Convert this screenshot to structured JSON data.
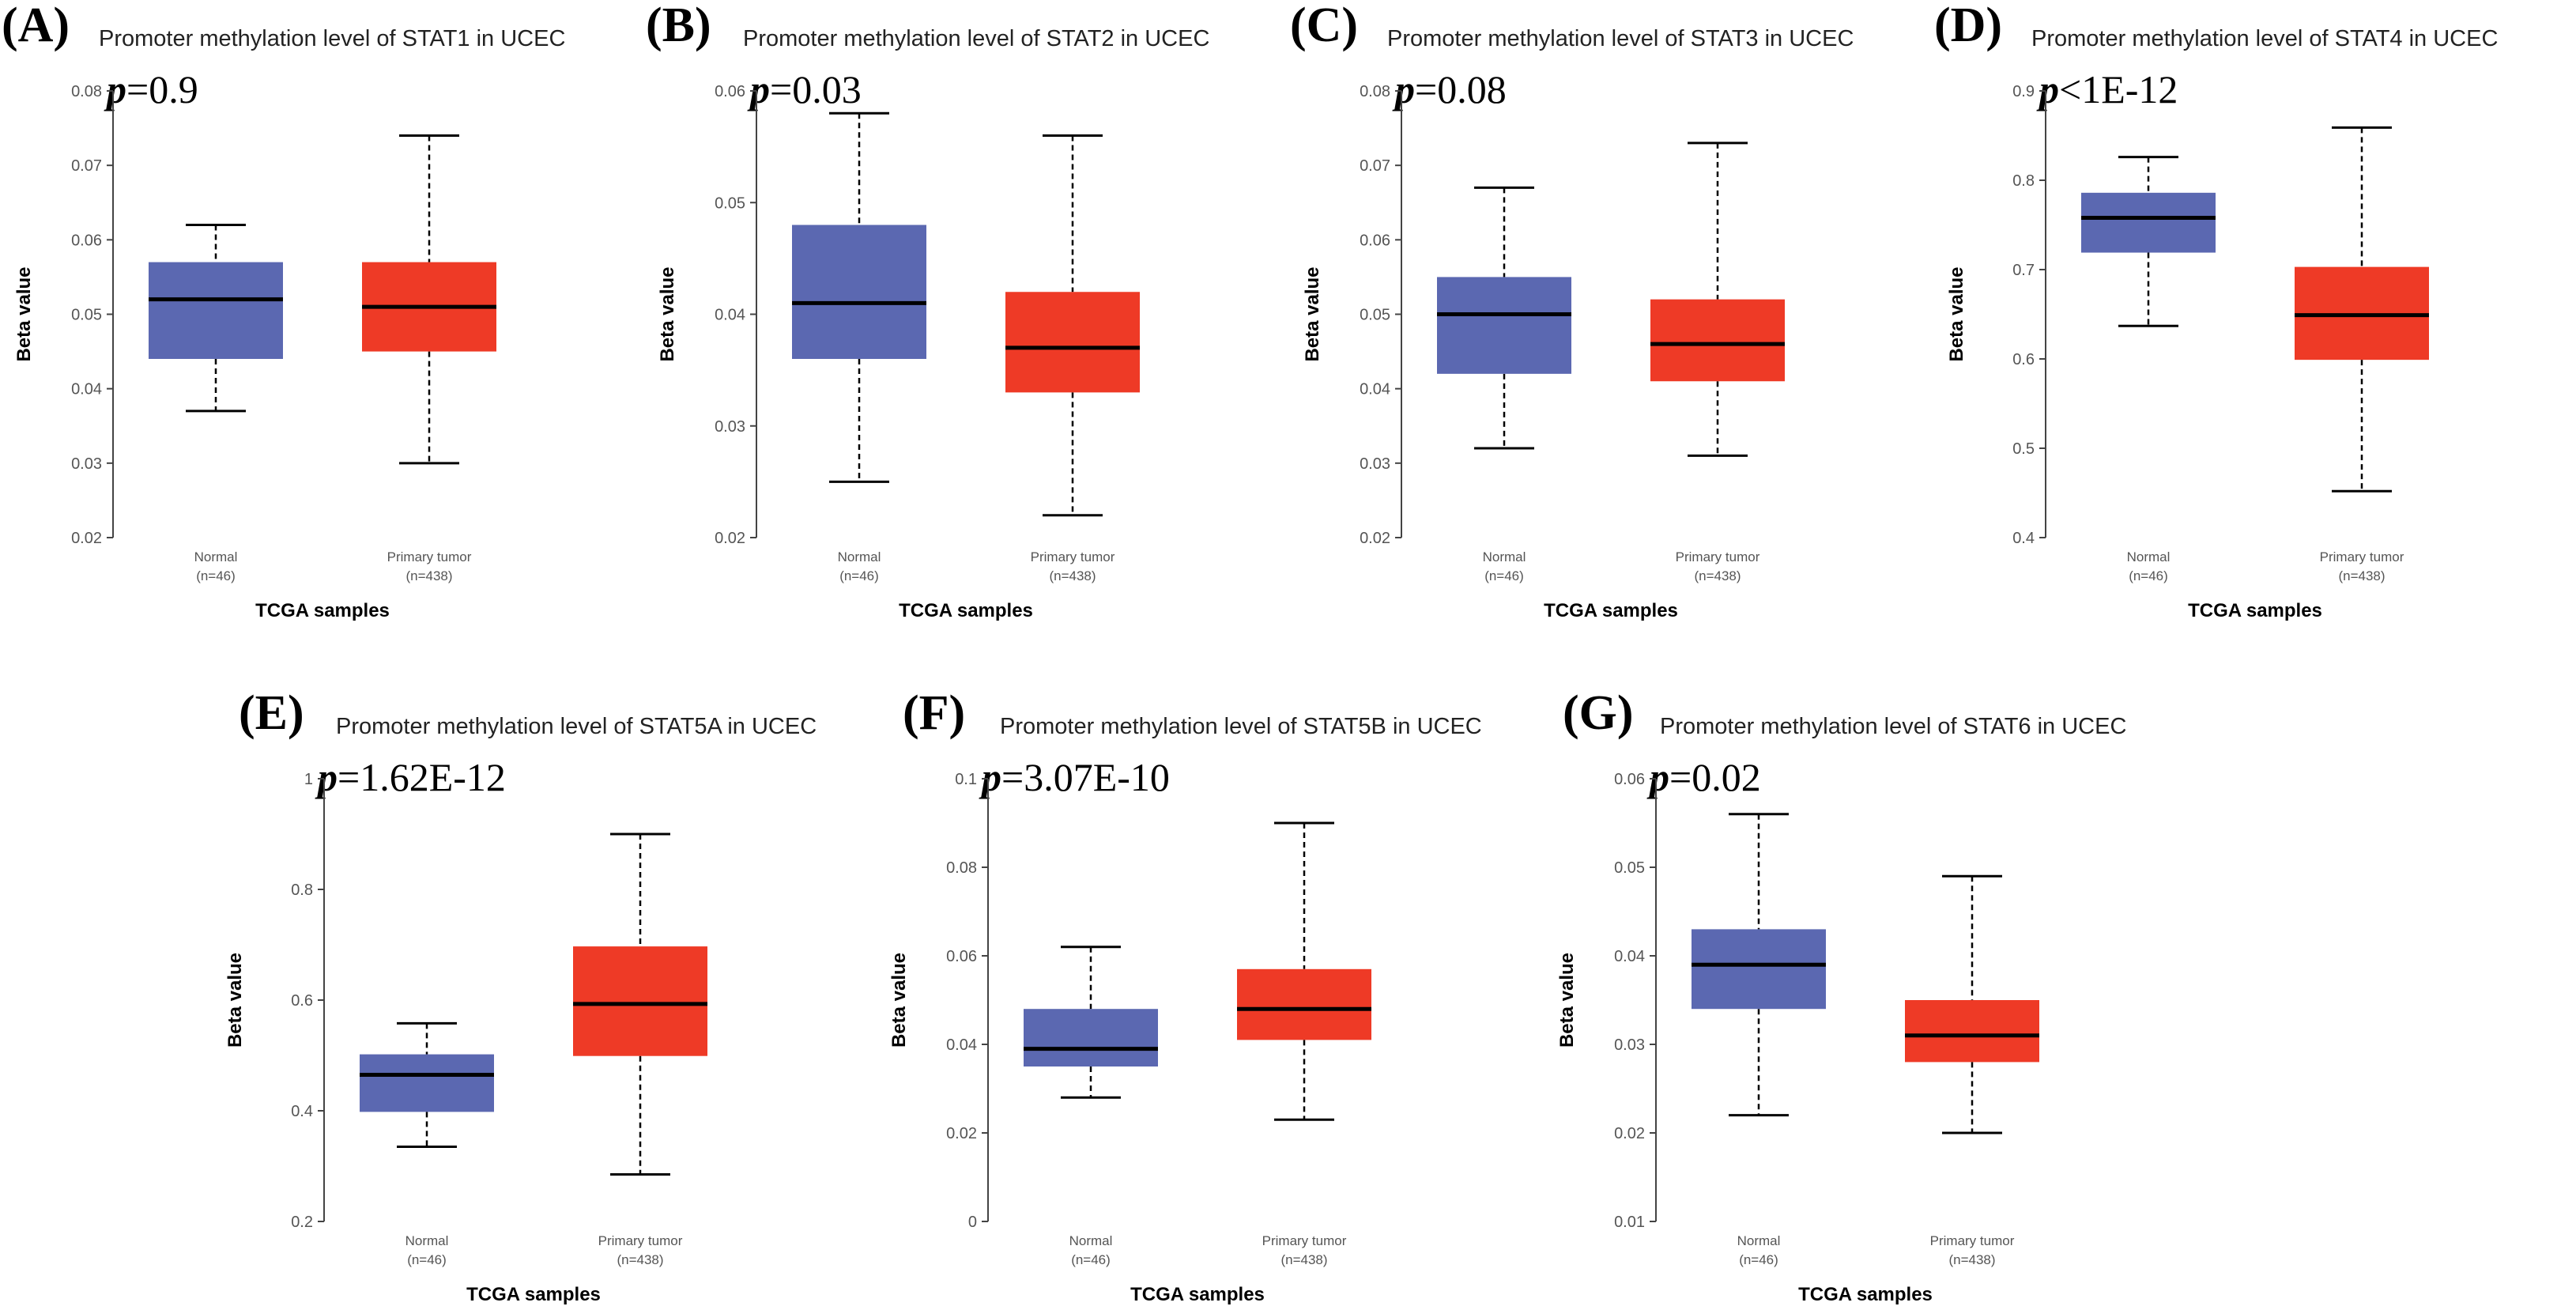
{
  "chart_data": [
    {
      "type": "box",
      "panel": "(A)",
      "title": "Promoter methylation level of STAT1 in UCEC",
      "p_value": "=0.9",
      "p_symbol": "p",
      "xlabel": "TCGA samples",
      "ylabel": "Beta value",
      "ylim": [
        0.02,
        0.08
      ],
      "yticks": [
        0.02,
        0.03,
        0.04,
        0.05,
        0.06,
        0.07,
        0.08
      ],
      "ytick_labels": [
        "0.02",
        "0.03",
        "0.04",
        "0.05",
        "0.06",
        "0.07",
        "0.08"
      ],
      "boxes": [
        {
          "name": "Normal",
          "n_label": "(n=46)",
          "min": 0.037,
          "q1": 0.044,
          "median": 0.052,
          "q3": 0.057,
          "max": 0.062,
          "color": "#5b68b1"
        },
        {
          "name": "Primary tumor",
          "n_label": "(n=438)",
          "min": 0.03,
          "q1": 0.045,
          "median": 0.051,
          "q3": 0.057,
          "max": 0.074,
          "color": "#ee3a26"
        }
      ]
    },
    {
      "type": "box",
      "panel": "(B)",
      "title": "Promoter methylation level of STAT2 in UCEC",
      "p_value": "=0.03",
      "p_symbol": "p",
      "xlabel": "TCGA samples",
      "ylabel": "Beta value",
      "ylim": [
        0.02,
        0.06
      ],
      "yticks": [
        0.02,
        0.03,
        0.04,
        0.05,
        0.06
      ],
      "ytick_labels": [
        "0.02",
        "0.03",
        "0.04",
        "0.05",
        "0.06"
      ],
      "boxes": [
        {
          "name": "Normal",
          "n_label": "(n=46)",
          "min": 0.025,
          "q1": 0.036,
          "median": 0.041,
          "q3": 0.048,
          "max": 0.058,
          "color": "#5b68b1"
        },
        {
          "name": "Primary tumor",
          "n_label": "(n=438)",
          "min": 0.022,
          "q1": 0.033,
          "median": 0.037,
          "q3": 0.042,
          "max": 0.056,
          "color": "#ee3a26"
        }
      ]
    },
    {
      "type": "box",
      "panel": "(C)",
      "title": "Promoter methylation level of STAT3 in UCEC",
      "p_value": "=0.08",
      "p_symbol": "p",
      "xlabel": "TCGA samples",
      "ylabel": "Beta value",
      "ylim": [
        0.02,
        0.08
      ],
      "yticks": [
        0.02,
        0.03,
        0.04,
        0.05,
        0.06,
        0.07,
        0.08
      ],
      "ytick_labels": [
        "0.02",
        "0.03",
        "0.04",
        "0.05",
        "0.06",
        "0.07",
        "0.08"
      ],
      "boxes": [
        {
          "name": "Normal",
          "n_label": "(n=46)",
          "min": 0.032,
          "q1": 0.042,
          "median": 0.05,
          "q3": 0.055,
          "max": 0.067,
          "color": "#5b68b1"
        },
        {
          "name": "Primary tumor",
          "n_label": "(n=438)",
          "min": 0.031,
          "q1": 0.041,
          "median": 0.046,
          "q3": 0.052,
          "max": 0.073,
          "color": "#ee3a26"
        }
      ]
    },
    {
      "type": "box",
      "panel": "(D)",
      "title": "Promoter methylation level of STAT4 in UCEC",
      "p_value": "<1E-12",
      "p_symbol": "p",
      "xlabel": "TCGA samples",
      "ylabel": "Beta value",
      "ylim": [
        0.4,
        0.9
      ],
      "yticks": [
        0.4,
        0.5,
        0.6,
        0.7,
        0.8,
        0.9
      ],
      "ytick_labels": [
        "0.4",
        "0.5",
        "0.6",
        "0.7",
        "0.8",
        "0.9"
      ],
      "boxes": [
        {
          "name": "Normal",
          "n_label": "(n=46)",
          "min": 0.637,
          "q1": 0.719,
          "median": 0.758,
          "q3": 0.786,
          "max": 0.826,
          "color": "#5b68b1"
        },
        {
          "name": "Primary tumor",
          "n_label": "(n=438)",
          "min": 0.452,
          "q1": 0.599,
          "median": 0.649,
          "q3": 0.703,
          "max": 0.859,
          "color": "#ee3a26"
        }
      ]
    },
    {
      "type": "box",
      "panel": "(E)",
      "title": "Promoter methylation level of STAT5A in UCEC",
      "p_value": "=1.62E-12",
      "p_symbol": "p",
      "xlabel": "TCGA samples",
      "ylabel": "Beta value",
      "ylim": [
        0.2,
        1.0
      ],
      "yticks": [
        0.2,
        0.4,
        0.6,
        0.8,
        1.0
      ],
      "ytick_labels": [
        "0.2",
        "0.4",
        "0.6",
        "0.8",
        "1"
      ],
      "boxes": [
        {
          "name": "Normal",
          "n_label": "(n=46)",
          "min": 0.335,
          "q1": 0.398,
          "median": 0.465,
          "q3": 0.502,
          "max": 0.558,
          "color": "#5b68b1"
        },
        {
          "name": "Primary tumor",
          "n_label": "(n=438)",
          "min": 0.285,
          "q1": 0.499,
          "median": 0.593,
          "q3": 0.697,
          "max": 0.9,
          "color": "#ee3a26"
        }
      ]
    },
    {
      "type": "box",
      "panel": "(F)",
      "title": "Promoter methylation level of STAT5B in UCEC",
      "p_value": "=3.07E-10",
      "p_symbol": "p",
      "xlabel": "TCGA samples",
      "ylabel": "Beta value",
      "ylim": [
        0,
        0.1
      ],
      "yticks": [
        0,
        0.02,
        0.04,
        0.06,
        0.08,
        0.1
      ],
      "ytick_labels": [
        "0",
        "0.02",
        "0.04",
        "0.06",
        "0.08",
        "0.1"
      ],
      "boxes": [
        {
          "name": "Normal",
          "n_label": "(n=46)",
          "min": 0.028,
          "q1": 0.035,
          "median": 0.039,
          "q3": 0.048,
          "max": 0.062,
          "color": "#5b68b1"
        },
        {
          "name": "Primary tumor",
          "n_label": "(n=438)",
          "min": 0.023,
          "q1": 0.041,
          "median": 0.048,
          "q3": 0.057,
          "max": 0.09,
          "color": "#ee3a26"
        }
      ]
    },
    {
      "type": "box",
      "panel": "(G)",
      "title": "Promoter methylation level of STAT6 in UCEC",
      "p_value": "=0.02",
      "p_symbol": "p",
      "xlabel": "TCGA samples",
      "ylabel": "Beta value",
      "ylim": [
        0.01,
        0.06
      ],
      "yticks": [
        0.01,
        0.02,
        0.03,
        0.04,
        0.05,
        0.06
      ],
      "ytick_labels": [
        "0.01",
        "0.02",
        "0.03",
        "0.04",
        "0.05",
        "0.06"
      ],
      "boxes": [
        {
          "name": "Normal",
          "n_label": "(n=46)",
          "min": 0.022,
          "q1": 0.034,
          "median": 0.039,
          "q3": 0.043,
          "max": 0.056,
          "color": "#5b68b1"
        },
        {
          "name": "Primary tumor",
          "n_label": "(n=438)",
          "min": 0.02,
          "q1": 0.028,
          "median": 0.031,
          "q3": 0.035,
          "max": 0.049,
          "color": "#ee3a26"
        }
      ]
    }
  ]
}
